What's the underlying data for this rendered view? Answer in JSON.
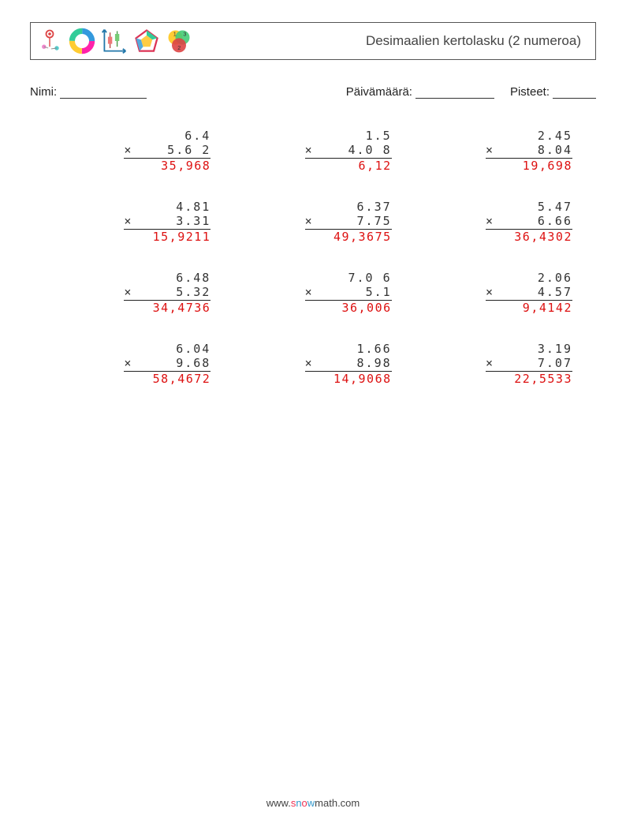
{
  "header": {
    "title": "Desimaalien kertolasku (2 numeroa)"
  },
  "meta": {
    "name_label": "Nimi:",
    "date_label": "Päivämäärä:",
    "score_label": "Pisteet:"
  },
  "operator": "×",
  "problems": [
    {
      "a": "6.4",
      "b": "5.6 2",
      "ans": "35,968"
    },
    {
      "a": "1.5",
      "b": "4.0 8",
      "ans": "6,12"
    },
    {
      "a": "2.45",
      "b": "8.04",
      "ans": "19,698"
    },
    {
      "a": "4.81",
      "b": "3.31",
      "ans": "15,9211"
    },
    {
      "a": "6.37",
      "b": "7.75",
      "ans": "49,3675"
    },
    {
      "a": "5.47",
      "b": "6.66",
      "ans": "36,4302"
    },
    {
      "a": "6.48",
      "b": "5.32",
      "ans": "34,4736"
    },
    {
      "a": "7.0 6",
      "b": "5.1",
      "ans": "36,006"
    },
    {
      "a": "2.06",
      "b": "4.57",
      "ans": "9,4142"
    },
    {
      "a": "6.04",
      "b": "9.68",
      "ans": "58,4672"
    },
    {
      "a": "1.66",
      "b": "8.98",
      "ans": "14,9068"
    },
    {
      "a": "3.19",
      "b": "7.07",
      "ans": "22,5533"
    }
  ],
  "footer": {
    "prefix": "www.",
    "s": "s",
    "n": "n",
    "o": "o",
    "w": "w",
    "rest": "math.com"
  },
  "colors": {
    "answer": "#d11",
    "text": "#333",
    "border": "#555"
  }
}
